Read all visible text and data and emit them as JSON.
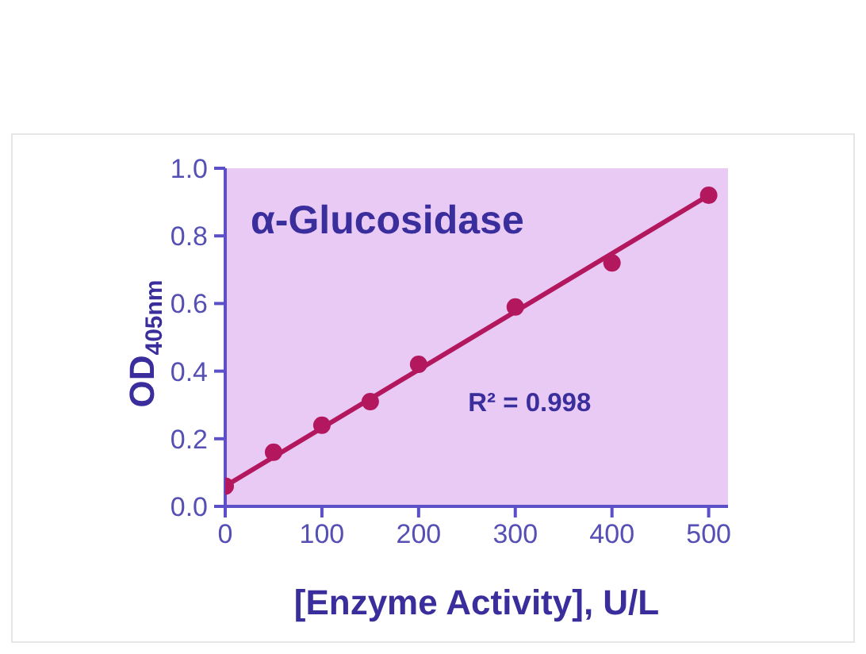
{
  "chart_data": {
    "type": "scatter",
    "title": "α-Glucosidase",
    "xlabel": "[Enzyme Activity], U/L",
    "ylabel": "OD$_{405nm}$",
    "annotations": [
      "R² = 0.998"
    ],
    "marker": "circle",
    "xlim": [
      0,
      520
    ],
    "xticks": [
      0,
      100,
      200,
      300,
      400,
      500
    ],
    "ylim": [
      0,
      1
    ],
    "yticks": [
      {
        "value": 0,
        "label": "0.0"
      },
      0.2,
      0.4,
      0.6,
      0.8,
      {
        "value": 1,
        "label": "1.0"
      }
    ],
    "series": [
      {
        "type": "line",
        "color": "#b3185f",
        "marker": "none",
        "x": [
          0,
          500
        ],
        "values": [
          0.06,
          0.92
        ]
      },
      {
        "color": "#b3185f",
        "x": [
          0,
          50,
          100,
          150,
          200,
          300,
          400,
          500
        ],
        "values": [
          0.06,
          0.16,
          0.24,
          0.31,
          0.42,
          0.59,
          0.72,
          0.92
        ]
      }
    ]
  }
}
